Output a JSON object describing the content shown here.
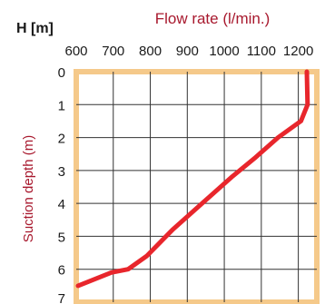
{
  "chart_data": {
    "type": "line",
    "title": "",
    "corner_label": "H [m]",
    "xlabel": "Flow rate (l/min.)",
    "ylabel": "Suction depth (m)",
    "x_axis_position": "top",
    "y_axis_direction": "down",
    "xlim": [
      600,
      1250
    ],
    "ylim": [
      0,
      7
    ],
    "x_ticks": [
      600,
      700,
      800,
      900,
      1000,
      1100,
      1200
    ],
    "y_ticks": [
      0,
      1,
      2,
      3,
      4,
      5,
      6,
      7
    ],
    "grid": true,
    "colors": {
      "series": "#e8262c",
      "frame": "#f5c98a",
      "axis_title": "#a8192e",
      "grid": "#333333"
    },
    "series": [
      {
        "x": [
          1223,
          1225,
          1207,
          1145,
          1085,
          1020,
          940,
          860,
          790,
          740,
          695,
          605
        ],
        "y": [
          0,
          1,
          1.5,
          2,
          2.6,
          3.2,
          4,
          4.8,
          5.6,
          6.0,
          6.1,
          6.5
        ]
      }
    ]
  }
}
